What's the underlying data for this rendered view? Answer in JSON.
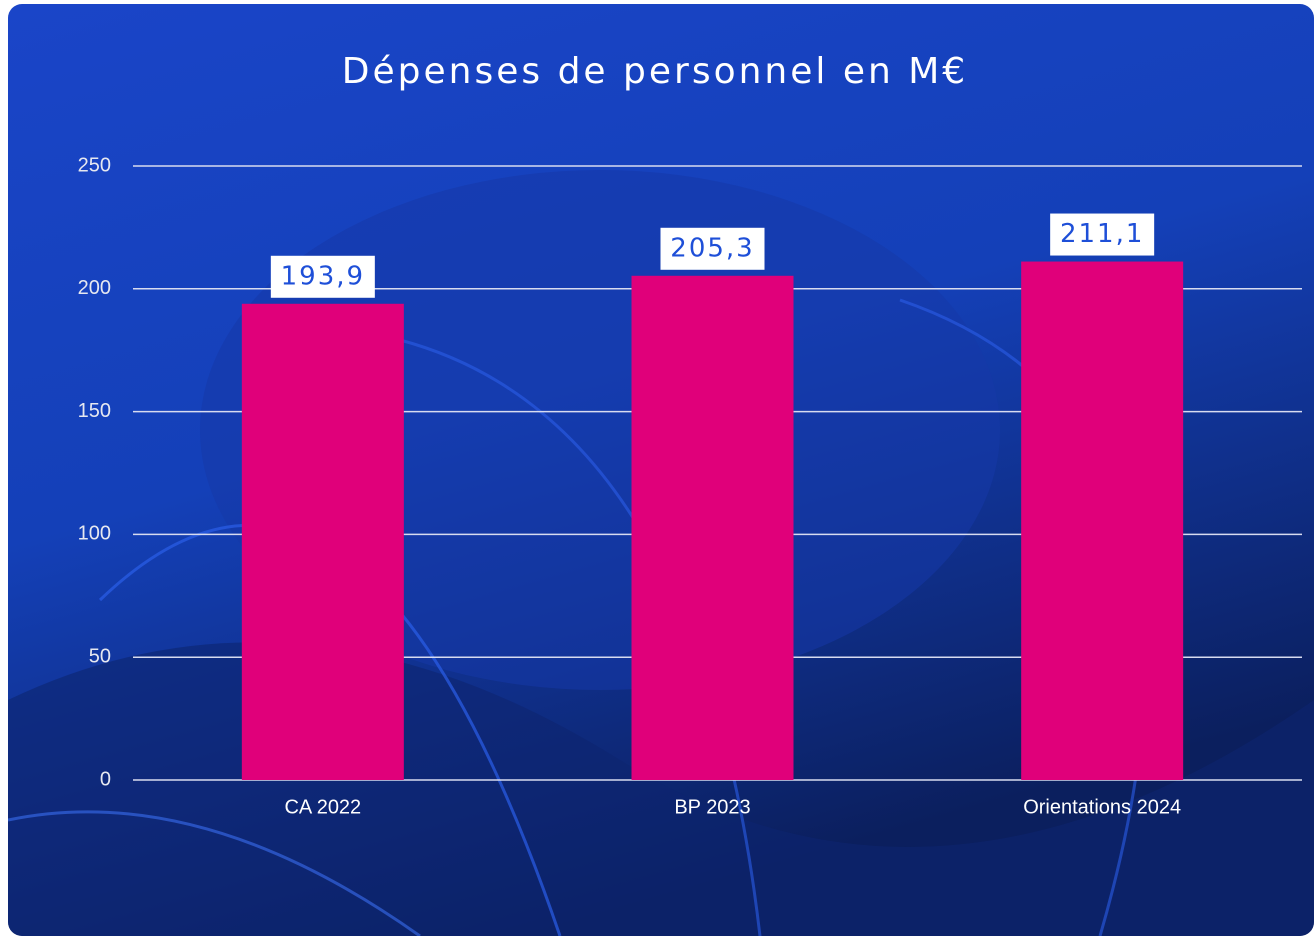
{
  "chart_data": {
    "type": "bar",
    "title": "Dépenses de personnel en M€",
    "categories": [
      "CA 2022",
      "BP 2023",
      "Orientations 2024"
    ],
    "values": [
      193.9,
      205.3,
      211.1
    ],
    "value_labels": [
      "193,9",
      "205,3",
      "211,1"
    ],
    "color": "#e0007a",
    "ylim": [
      0,
      250
    ],
    "yticks": [
      0,
      50,
      100,
      150,
      200,
      250
    ],
    "grid": true
  }
}
